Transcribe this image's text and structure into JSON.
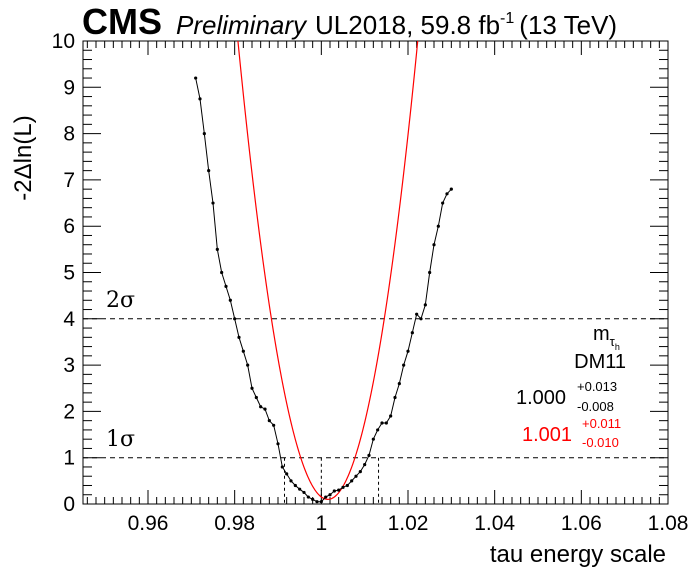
{
  "header": {
    "experiment": "CMS",
    "status": "Preliminary",
    "luminosity": "UL2018, 59.8 fb",
    "lumi_exp": "-1",
    "energy": "(13 TeV)"
  },
  "annotation": {
    "variable_base": "m",
    "variable_sub1": "τ",
    "variable_sub2": "h",
    "decay_mode": "DM11",
    "fit1": {
      "value": "1.000",
      "up": "+0.013",
      "down": "-0.008",
      "color": "#000000"
    },
    "fit2": {
      "value": "1.001",
      "up": "+0.011",
      "down": "-0.010",
      "color": "#ff0000"
    }
  },
  "chart_data": {
    "type": "line",
    "xlabel": "tau energy scale",
    "ylabel": "-2Δln(L)",
    "xlim": [
      0.945,
      1.08
    ],
    "ylim": [
      0,
      10
    ],
    "xticks": [
      "0.96",
      "0.98",
      "1",
      "1.02",
      "1.04",
      "1.06",
      "1.08"
    ],
    "yticks": [
      "0",
      "1",
      "2",
      "3",
      "4",
      "5",
      "6",
      "7",
      "8",
      "9",
      "10"
    ],
    "reference_lines": [
      {
        "label": "1σ",
        "y": 1
      },
      {
        "label": "2σ",
        "y": 4
      }
    ],
    "interval_markers": [
      0.9915,
      1.0,
      1.0132
    ],
    "series": [
      {
        "color": "#000000",
        "style": "points-line",
        "x": [
          0.971,
          0.972,
          0.973,
          0.974,
          0.975,
          0.976,
          0.977,
          0.978,
          0.979,
          0.98,
          0.981,
          0.982,
          0.983,
          0.984,
          0.985,
          0.986,
          0.987,
          0.988,
          0.989,
          0.99,
          0.991,
          0.992,
          0.993,
          0.994,
          0.995,
          0.996,
          0.997,
          0.998,
          0.999,
          1.0,
          1.001,
          1.002,
          1.003,
          1.004,
          1.005,
          1.006,
          1.007,
          1.008,
          1.009,
          1.01,
          1.011,
          1.012,
          1.013,
          1.014,
          1.015,
          1.016,
          1.017,
          1.018,
          1.019,
          1.02,
          1.021,
          1.022,
          1.023,
          1.024,
          1.025,
          1.026,
          1.027,
          1.028,
          1.029,
          1.03
        ],
        "y": [
          9.2,
          8.75,
          8.0,
          7.2,
          6.5,
          5.5,
          5.0,
          4.7,
          4.4,
          4.0,
          3.6,
          3.3,
          3.0,
          2.5,
          2.3,
          2.1,
          2.05,
          1.8,
          1.7,
          1.3,
          0.8,
          0.65,
          0.5,
          0.4,
          0.32,
          0.25,
          0.15,
          0.1,
          0.05,
          0.05,
          0.15,
          0.2,
          0.28,
          0.3,
          0.36,
          0.4,
          0.5,
          0.6,
          0.7,
          0.85,
          1.05,
          1.4,
          1.6,
          1.75,
          1.75,
          1.9,
          2.3,
          2.6,
          3.0,
          3.3,
          3.7,
          4.1,
          4.0,
          4.3,
          5.0,
          5.6,
          6.0,
          6.5,
          6.7,
          6.8
        ]
      },
      {
        "color": "#ff0000",
        "style": "line",
        "a": 23000,
        "x0": 1.0015,
        "ymin": 0.1
      }
    ]
  }
}
